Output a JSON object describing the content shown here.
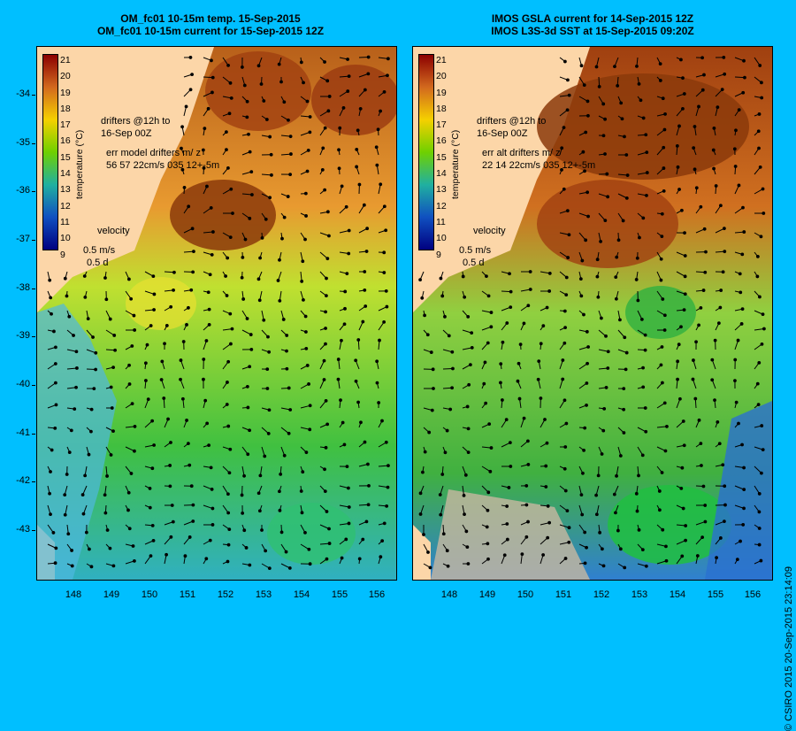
{
  "panels": [
    {
      "title_line1": "OM_fc01 10-15m temp. 15-Sep-2015",
      "title_line2": "OM_fc01 10-15m current for 15-Sep-2015 12Z",
      "drifters_line1": "drifters @12h to",
      "drifters_line2": "16-Sep 00Z",
      "err_line1": "err model drifters m/ z",
      "err_line2": "56 57 22cm/s 035 12+-5m",
      "velocity_label": "velocity",
      "velocity_speed": "0.5 m/s",
      "velocity_time": "0.5 d",
      "colorbar_title": "temperature (°C)"
    },
    {
      "title_line1": "IMOS GSLA current for 14-Sep-2015 12Z",
      "title_line2": "IMOS L3S-3d SST at 15-Sep-2015 09:20Z",
      "drifters_line1": "drifters @12h to",
      "drifters_line2": "16-Sep 00Z",
      "err_line1": "err alt drifters m/ z",
      "err_line2": "22 14 22cm/s 035 12+-5m",
      "velocity_label": "velocity",
      "velocity_speed": "0.5 m/s",
      "velocity_time": "0.5 d",
      "colorbar_title": "temperature (°C)"
    }
  ],
  "colorbar_ticks": [
    "21",
    "20",
    "19",
    "18",
    "17",
    "16",
    "15",
    "14",
    "13",
    "12",
    "11",
    "10",
    "9"
  ],
  "colorbar_colors": [
    "#8b0000",
    "#b22222",
    "#d2691e",
    "#e8a030",
    "#f5d000",
    "#c8e000",
    "#6fd000",
    "#20c040",
    "#20b0a0",
    "#2090d0",
    "#1050c0",
    "#1020a0",
    "#000080"
  ],
  "y_ticks": [
    "-34",
    "-35",
    "-36",
    "-37",
    "-38",
    "-39",
    "-40",
    "-41",
    "-42",
    "-43"
  ],
  "x_ticks": [
    "148",
    "149",
    "150",
    "151",
    "152",
    "153",
    "154",
    "155",
    "156"
  ],
  "credit": "© CSIRO 2015   20-Sep-2015 23:14:09"
}
